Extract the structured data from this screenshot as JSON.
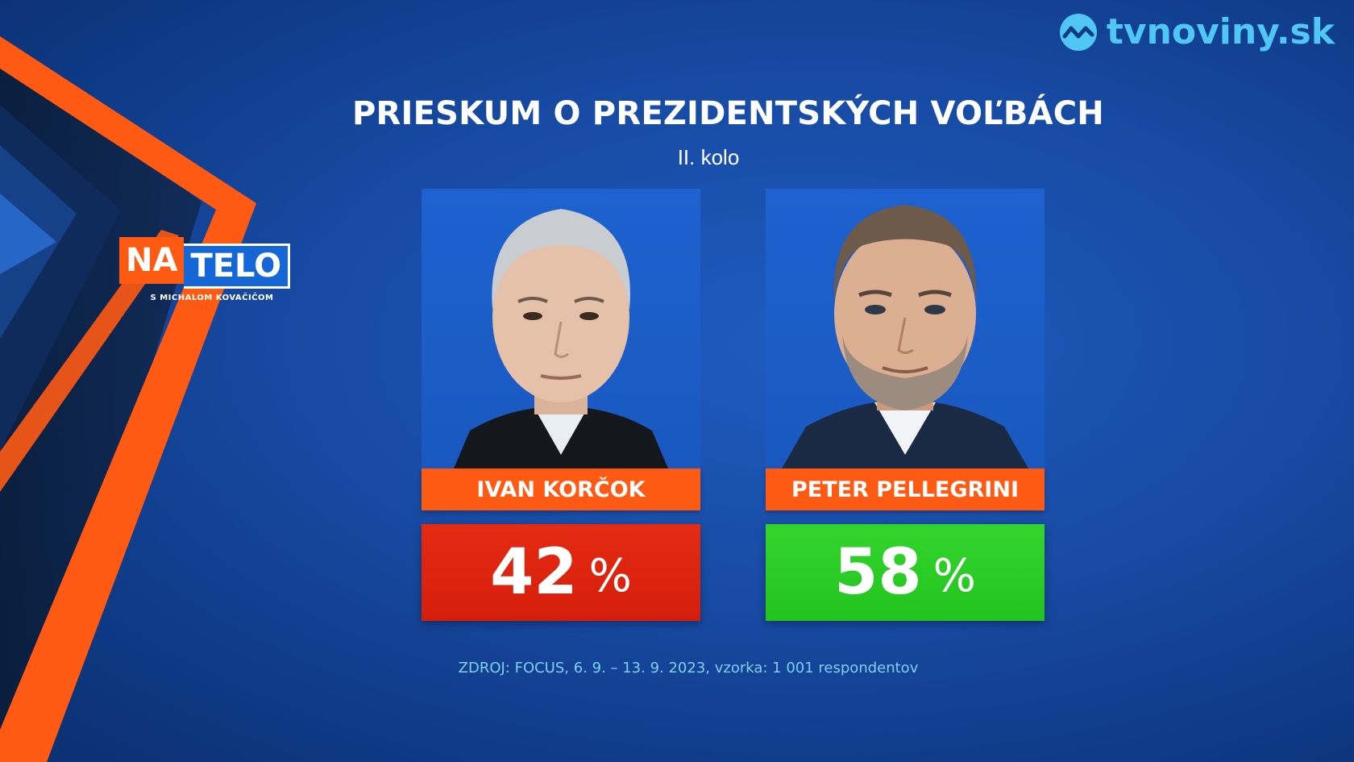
{
  "brand": {
    "name": "tvnoviny.sk",
    "color": "#4fc6f3"
  },
  "show": {
    "logo_part1": "NA",
    "logo_part2": "TELO",
    "subtitle": "S MICHALOM KOVAČIČOM",
    "accent_color": "#ff5a12"
  },
  "header": {
    "title": "PRIESKUM O PREZIDENTSKÝCH VOĽBÁCH",
    "subtitle": "II. kolo"
  },
  "candidates": [
    {
      "name": "IVAN KORČOK",
      "percent": "42",
      "percent_sign": "%",
      "result_color": "#e02810"
    },
    {
      "name": "PETER PELLEGRINI",
      "percent": "58",
      "percent_sign": "%",
      "result_color": "#2ccd27"
    }
  ],
  "source": "ZDROJ: FOCUS, 6. 9. – 13. 9. 2023, vzorka: 1 001 respondentov"
}
